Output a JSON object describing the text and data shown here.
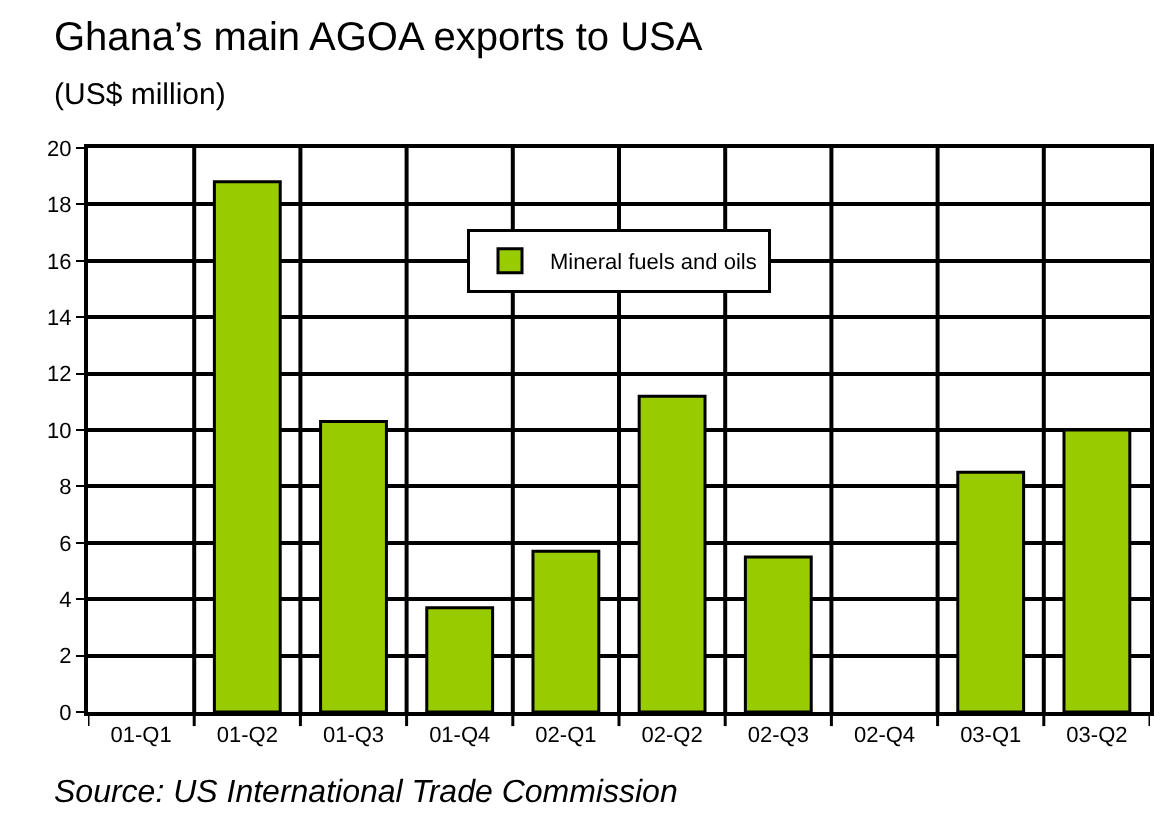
{
  "chart_data": {
    "type": "bar",
    "title": "Ghana’s main AGOA exports to USA",
    "subtitle": "(US$ million)",
    "categories": [
      "01-Q1",
      "01-Q2",
      "01-Q3",
      "01-Q4",
      "02-Q1",
      "02-Q2",
      "02-Q3",
      "02-Q4",
      "03-Q1",
      "03-Q2"
    ],
    "series": [
      {
        "name": "Mineral fuels and oils",
        "color": "#99cc00",
        "values": [
          null,
          18.8,
          10.3,
          3.7,
          5.7,
          11.2,
          5.5,
          null,
          8.5,
          10.0
        ]
      }
    ],
    "ylim": [
      0,
      20
    ],
    "yticks": [
      0,
      2,
      4,
      6,
      8,
      10,
      12,
      14,
      16,
      18,
      20
    ],
    "grid": true,
    "legend": "top",
    "annotations": [
      "Source: US International Trade Commission"
    ]
  }
}
